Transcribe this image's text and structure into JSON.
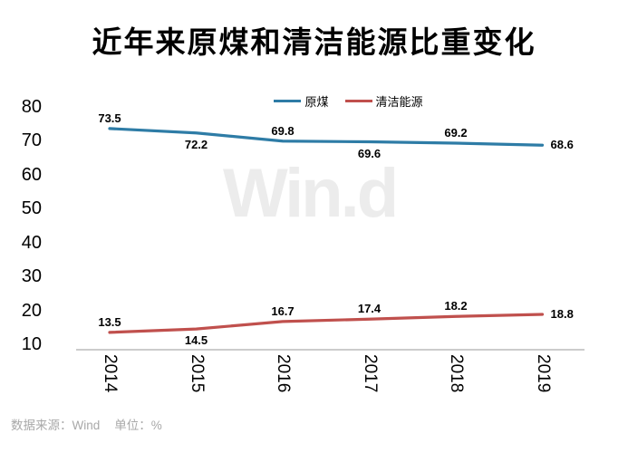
{
  "title": "近年来原煤和清洁能源比重变化",
  "watermark": "Win.d",
  "footer": {
    "source": "数据来源：Wind",
    "unit": "单位：%"
  },
  "colors": {
    "coal_line": "#2E7CA6",
    "clean_line": "#C0504D",
    "axis_line": "#999999",
    "data_label": "#000000",
    "footer_text": "#A8A8A8",
    "watermark_text": "#ECECEC"
  },
  "chart_data": {
    "type": "line",
    "title": "近年来原煤和清洁能源比重变化",
    "categories": [
      "2014",
      "2015",
      "2016",
      "2017",
      "2018",
      "2019"
    ],
    "series": [
      {
        "name": "原煤",
        "color": "#2E7CA6",
        "values": [
          73.5,
          72.2,
          69.8,
          69.6,
          69.2,
          68.6
        ],
        "label_positions": [
          "above",
          "below",
          "above",
          "below",
          "above",
          "right"
        ]
      },
      {
        "name": "清洁能源",
        "color": "#C0504D",
        "values": [
          13.5,
          14.5,
          16.7,
          17.4,
          18.2,
          18.8
        ],
        "label_positions": [
          "above",
          "below",
          "above",
          "above",
          "above",
          "right"
        ]
      }
    ],
    "yticks": [
      80,
      70,
      60,
      50,
      40,
      30,
      20,
      10
    ],
    "ylim": [
      10,
      80
    ],
    "xlabel": "",
    "ylabel": "",
    "unit": "%",
    "grid": false,
    "legend_position": "top-center",
    "x_tick_rotation": 90
  }
}
